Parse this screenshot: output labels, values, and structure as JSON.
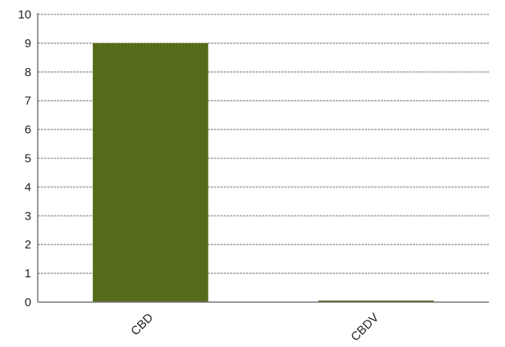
{
  "chart_data": {
    "type": "bar",
    "categories": [
      "CBD",
      "CBDV"
    ],
    "values": [
      9,
      0.05
    ],
    "ylim": [
      0,
      10
    ],
    "yticks": [
      0,
      1,
      2,
      3,
      4,
      5,
      6,
      7,
      8,
      9,
      10
    ],
    "grid": true,
    "legend": "none",
    "bar_color": "#556b1a",
    "grid_color": "#a8a8a8",
    "axis_color": "#777777"
  }
}
